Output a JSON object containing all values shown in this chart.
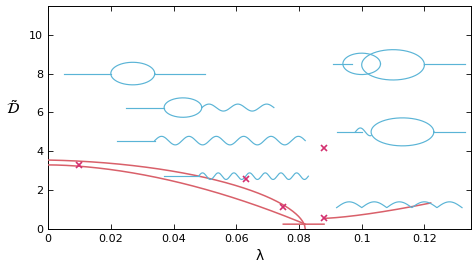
{
  "xlabel": "λ",
  "ylabel": "$\\tilde{\\mathcal{D}}$",
  "xlim": [
    0,
    0.135
  ],
  "ylim": [
    0,
    11.5
  ],
  "xticks": [
    0,
    0.02,
    0.04,
    0.06,
    0.08,
    0.1,
    0.12
  ],
  "yticks": [
    0,
    2,
    4,
    6,
    8,
    10
  ],
  "red_color": "#d9606a",
  "pink_marker_color": "#d43070",
  "blue_color": "#5ab4d6",
  "bg_color": "#ffffff",
  "curve1_markers": [
    [
      0.01,
      3.27
    ],
    [
      0.063,
      2.55
    ]
  ],
  "curve2_markers": [
    [
      0.088,
      4.15
    ],
    [
      0.088,
      0.55
    ],
    [
      0.075,
      1.15
    ]
  ],
  "fig_width": 4.77,
  "fig_height": 2.69,
  "dpi": 100
}
